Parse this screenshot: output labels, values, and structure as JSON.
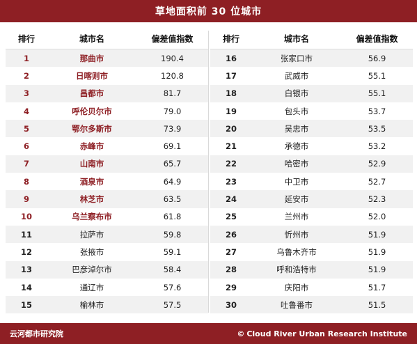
{
  "title": "草地面积前 30 位城市",
  "headers": {
    "rank": "排行",
    "city": "城市名",
    "value": "偏差值指数"
  },
  "left_rows": [
    {
      "rank": "1",
      "city": "那曲市",
      "value": "190.4"
    },
    {
      "rank": "2",
      "city": "日喀则市",
      "value": "120.8"
    },
    {
      "rank": "3",
      "city": "昌都市",
      "value": "81.7"
    },
    {
      "rank": "4",
      "city": "呼伦贝尔市",
      "value": "79.0"
    },
    {
      "rank": "5",
      "city": "鄂尔多斯市",
      "value": "73.9"
    },
    {
      "rank": "6",
      "city": "赤峰市",
      "value": "69.1"
    },
    {
      "rank": "7",
      "city": "山南市",
      "value": "65.7"
    },
    {
      "rank": "8",
      "city": "酒泉市",
      "value": "64.9"
    },
    {
      "rank": "9",
      "city": "林芝市",
      "value": "63.5"
    },
    {
      "rank": "10",
      "city": "乌兰察布市",
      "value": "61.8"
    },
    {
      "rank": "11",
      "city": "拉萨市",
      "value": "59.8"
    },
    {
      "rank": "12",
      "city": "张掖市",
      "value": "59.1"
    },
    {
      "rank": "13",
      "city": "巴彦淖尔市",
      "value": "58.4"
    },
    {
      "rank": "14",
      "city": "通辽市",
      "value": "57.6"
    },
    {
      "rank": "15",
      "city": "榆林市",
      "value": "57.5"
    }
  ],
  "right_rows": [
    {
      "rank": "16",
      "city": "张家口市",
      "value": "56.9"
    },
    {
      "rank": "17",
      "city": "武威市",
      "value": "55.1"
    },
    {
      "rank": "18",
      "city": "白银市",
      "value": "55.1"
    },
    {
      "rank": "19",
      "city": "包头市",
      "value": "53.7"
    },
    {
      "rank": "20",
      "city": "吴忠市",
      "value": "53.5"
    },
    {
      "rank": "21",
      "city": "承德市",
      "value": "53.2"
    },
    {
      "rank": "22",
      "city": "哈密市",
      "value": "52.9"
    },
    {
      "rank": "23",
      "city": "中卫市",
      "value": "52.7"
    },
    {
      "rank": "24",
      "city": "延安市",
      "value": "52.3"
    },
    {
      "rank": "25",
      "city": "兰州市",
      "value": "52.0"
    },
    {
      "rank": "26",
      "city": "忻州市",
      "value": "51.9"
    },
    {
      "rank": "27",
      "city": "乌鲁木齐市",
      "value": "51.9"
    },
    {
      "rank": "28",
      "city": "呼和浩特市",
      "value": "51.9"
    },
    {
      "rank": "29",
      "city": "庆阳市",
      "value": "51.7"
    },
    {
      "rank": "30",
      "city": "吐鲁番市",
      "value": "51.5"
    }
  ],
  "highlight_count": 10,
  "footer": {
    "left": "云河都市研究院",
    "copyright_symbol": "©",
    "right": "Cloud River Urban Research Institute"
  },
  "colors": {
    "accent": "#8e1f24",
    "stripe": "#f1f1f1"
  }
}
